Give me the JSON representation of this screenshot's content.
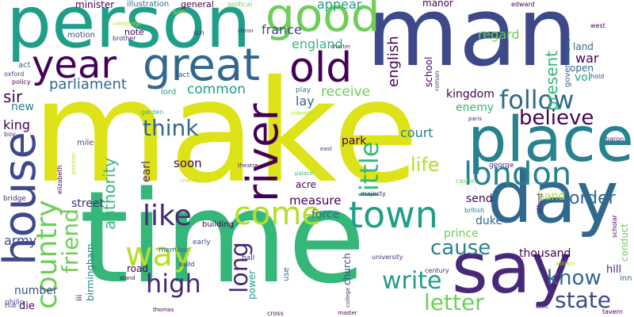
{
  "colors": {
    "dark-purple": "#440154",
    "indigo": "#482878",
    "purple-blue": "#3e4989",
    "slate-blue": "#31688e",
    "steel-teal": "#26828e",
    "teal": "#1f9e89",
    "green-teal": "#35b779",
    "green": "#6ece58",
    "lime": "#b5de2b",
    "yellow": "#dde318"
  },
  "words": [
    "make",
    "man",
    "time",
    "person",
    "day",
    "say",
    "place",
    "house",
    "good",
    "year",
    "great",
    "old",
    "come",
    "river",
    "town",
    "london",
    "country",
    "little",
    "follow",
    "like",
    "way",
    "think",
    "high",
    "believe",
    "long",
    "cause",
    "write",
    "know",
    "state",
    "letter",
    "life",
    "order",
    "friend",
    "authority",
    "parliament",
    "present",
    "england",
    "english",
    "france",
    "appear",
    "common",
    "lay",
    "receive",
    "court",
    "park",
    "kingdom",
    "enemy",
    "war",
    "land",
    "vol",
    "open",
    "regard",
    "school",
    "manor",
    "soon",
    "earl",
    "measure",
    "force",
    "duke",
    "prince",
    "acre",
    "send",
    "hand",
    "street",
    "thousand",
    "church",
    "army",
    "road",
    "power",
    "hill",
    "conduct",
    "inn",
    "birmingham",
    "number",
    "die",
    "sir",
    "new",
    "king",
    "minister",
    "illustration",
    "general",
    "political",
    "son",
    "edward",
    "west",
    "note",
    "sch",
    "motion",
    "brother",
    "cambridge",
    "oxford",
    "policy",
    "act",
    "fact",
    "play",
    "lord",
    "chron",
    "charter",
    "roman",
    "government",
    "hold",
    "garden",
    "boy",
    "mile",
    "position",
    "elizabeth",
    "bridge",
    "philip",
    "club",
    "charles",
    "theatre",
    "building",
    "cross",
    "member",
    "early",
    "hall",
    "majesty",
    "palace",
    "george",
    "castle",
    "british",
    "alfred",
    "scholar",
    "university",
    "century",
    "text",
    "william",
    "tavern",
    "master",
    "college",
    "stand",
    "build",
    "use",
    "thomas",
    "paris",
    "baron",
    "east",
    "iii",
    "sidenote"
  ]
}
